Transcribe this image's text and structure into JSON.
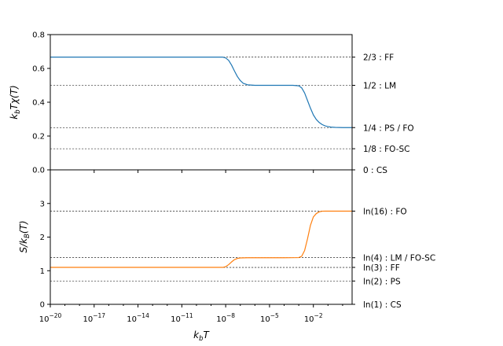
{
  "chart_data": [
    {
      "type": "line",
      "id": "chi",
      "ylabel": "k_bTχ(T)",
      "ylim": [
        0,
        0.8
      ],
      "yticks": [
        0.0,
        0.2,
        0.4,
        0.6,
        0.8
      ],
      "ytick_labels": [
        "0.0",
        "0.2",
        "0.4",
        "0.6",
        "0.8"
      ],
      "xscale": "log",
      "xlim_exp": [
        -20,
        0.65
      ],
      "series": [
        {
          "color": "#1f77b4",
          "x_exp": [
            -20,
            -8.2,
            -8.0,
            -7.8,
            -7.6,
            -7.4,
            -7.2,
            -7.0,
            -6.8,
            -6.5,
            -6.0,
            -5.0,
            -4.0,
            -3.4,
            -3.0,
            -2.8,
            -2.6,
            -2.4,
            -2.2,
            -2.0,
            -1.8,
            -1.6,
            -1.4,
            -1.2,
            -1.0,
            -0.8,
            -0.5,
            0.0,
            0.65
          ],
          "y": [
            0.6667,
            0.6667,
            0.662,
            0.648,
            0.62,
            0.585,
            0.552,
            0.528,
            0.512,
            0.503,
            0.5,
            0.5,
            0.5,
            0.5,
            0.497,
            0.485,
            0.455,
            0.41,
            0.365,
            0.325,
            0.298,
            0.28,
            0.268,
            0.26,
            0.256,
            0.253,
            0.251,
            0.25,
            0.25
          ]
        }
      ],
      "reference_lines": [
        {
          "y": 0.6667,
          "label": "2/3 : FF"
        },
        {
          "y": 0.5,
          "label": "1/2 : LM"
        },
        {
          "y": 0.25,
          "label": "1/4 : PS / FO"
        },
        {
          "y": 0.125,
          "label": "1/8 : FO-SC"
        },
        {
          "y": 0.0,
          "label": "0 : CS"
        }
      ]
    },
    {
      "type": "line",
      "id": "entropy",
      "ylabel": "S/k_B(T)",
      "xlabel": "k_bT",
      "ylim": [
        0,
        4.0
      ],
      "yticks": [
        0,
        1,
        2,
        3
      ],
      "ytick_labels": [
        "0",
        "1",
        "2",
        "3"
      ],
      "xscale": "log",
      "xlim_exp": [
        -20,
        0.65
      ],
      "xticks_exp": [
        -20,
        -17,
        -14,
        -11,
        -8,
        -5,
        -2
      ],
      "series": [
        {
          "color": "#ff7f0e",
          "x_exp": [
            -20,
            -8.2,
            -8.0,
            -7.8,
            -7.6,
            -7.4,
            -7.2,
            -7.0,
            -6.5,
            -4.0,
            -3.0,
            -2.8,
            -2.6,
            -2.4,
            -2.2,
            -2.0,
            -1.8,
            -1.6,
            -1.4,
            -1.2,
            -1.0,
            -0.5,
            0.65
          ],
          "y": [
            1.0986,
            1.0986,
            1.12,
            1.18,
            1.26,
            1.33,
            1.365,
            1.38,
            1.386,
            1.386,
            1.39,
            1.43,
            1.6,
            1.95,
            2.35,
            2.6,
            2.7,
            2.75,
            2.77,
            2.772,
            2.7726,
            2.7726,
            2.7726
          ]
        }
      ],
      "reference_lines": [
        {
          "y": 2.7726,
          "label": "ln(16) : FO"
        },
        {
          "y": 1.3863,
          "label": "ln(4) : LM / FO-SC"
        },
        {
          "y": 1.0986,
          "label": "ln(3) : FF"
        },
        {
          "y": 0.6931,
          "label": "ln(2) : PS"
        },
        {
          "y": 0.0,
          "label": "ln(1) : CS"
        }
      ]
    }
  ]
}
